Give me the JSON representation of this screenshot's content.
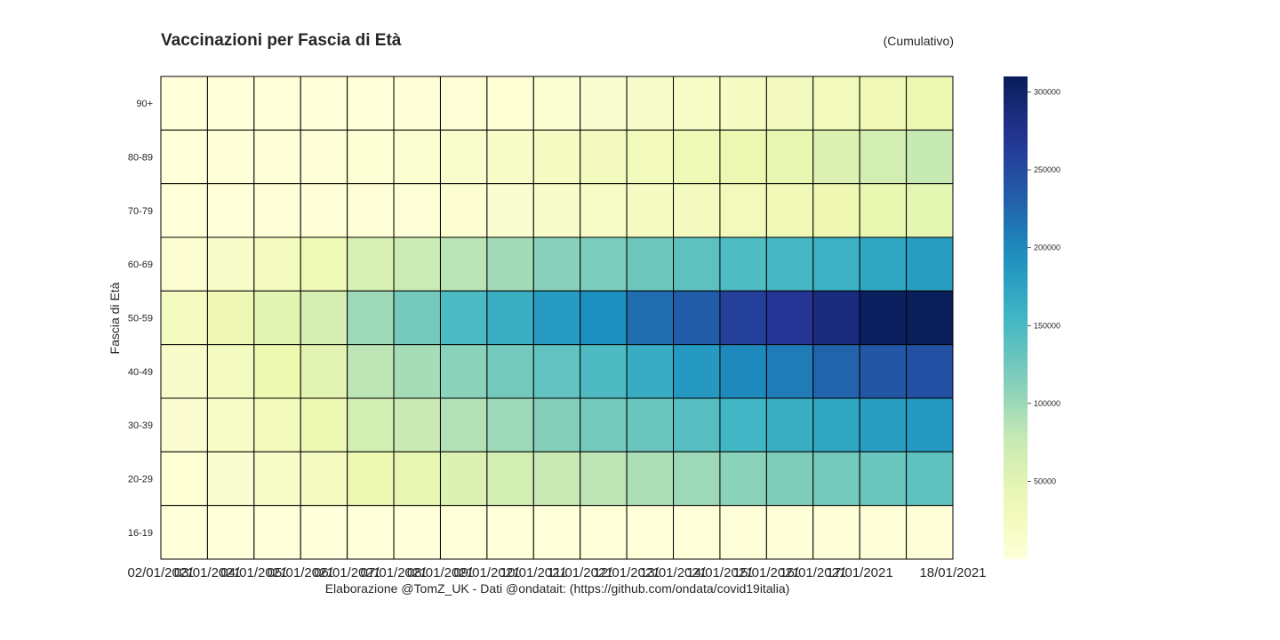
{
  "chart_data": {
    "type": "heatmap",
    "title": "Vaccinazioni per Fascia di Età",
    "subtitle": "(Cumulativo)",
    "xlabel": "Elaborazione @TomZ_UK - Dati @ondatait: (https://github.com/ondata/covid19italia)",
    "ylabel": "Fascia di Età",
    "x": [
      "02/01/2021",
      "03/01/2021",
      "04/01/2021",
      "05/01/2021",
      "06/01/2021",
      "07/01/2021",
      "08/01/2021",
      "09/01/2021",
      "10/01/2021",
      "11/01/2021",
      "12/01/2021",
      "13/01/2021",
      "14/01/2021",
      "15/01/2021",
      "16/01/2021",
      "17/01/2021",
      "18/01/2021"
    ],
    "y": [
      "90+",
      "80-89",
      "70-79",
      "60-69",
      "50-59",
      "40-49",
      "30-39",
      "20-29",
      "16-19"
    ],
    "values": [
      [
        200,
        300,
        500,
        700,
        1000,
        1500,
        3000,
        5000,
        8000,
        10000,
        14000,
        17000,
        21000,
        25000,
        30000,
        35000,
        40000
      ],
      [
        1000,
        1500,
        2000,
        3000,
        6000,
        8000,
        12000,
        16000,
        21000,
        25000,
        30000,
        34000,
        40000,
        45000,
        55000,
        65000,
        77000
      ],
      [
        500,
        1000,
        1500,
        2000,
        3000,
        4000,
        7000,
        10000,
        14000,
        17000,
        22000,
        25000,
        29000,
        32000,
        37000,
        42000,
        47000
      ],
      [
        7000,
        14000,
        24000,
        34000,
        60000,
        72000,
        85000,
        97000,
        111000,
        118000,
        127000,
        137000,
        146000,
        151000,
        160000,
        172000,
        180000
      ],
      [
        24000,
        36000,
        49000,
        64000,
        100000,
        122000,
        149000,
        163000,
        183000,
        195000,
        220000,
        235000,
        260000,
        270000,
        285000,
        305000,
        308000
      ],
      [
        14000,
        24000,
        39000,
        49000,
        83000,
        95000,
        110000,
        123000,
        135000,
        147000,
        165000,
        185000,
        200000,
        210000,
        228000,
        240000,
        245000
      ],
      [
        9000,
        17000,
        28000,
        38000,
        65000,
        75000,
        88000,
        100000,
        113000,
        123000,
        130000,
        142000,
        155000,
        163000,
        172000,
        180000,
        185000
      ],
      [
        5000,
        10000,
        16000,
        22000,
        38000,
        45000,
        55000,
        65000,
        75000,
        83000,
        92000,
        100000,
        110000,
        117000,
        123000,
        130000,
        136000
      ],
      [
        100,
        100,
        200,
        200,
        300,
        300,
        400,
        500,
        600,
        700,
        800,
        1000,
        1200,
        1400,
        1600,
        1800,
        2000
      ]
    ],
    "colorbar": {
      "ticks": [
        50000,
        100000,
        150000,
        200000,
        250000,
        300000
      ],
      "min": 0,
      "max": 310000
    },
    "colormap": "YlGnBu",
    "grid": false
  }
}
